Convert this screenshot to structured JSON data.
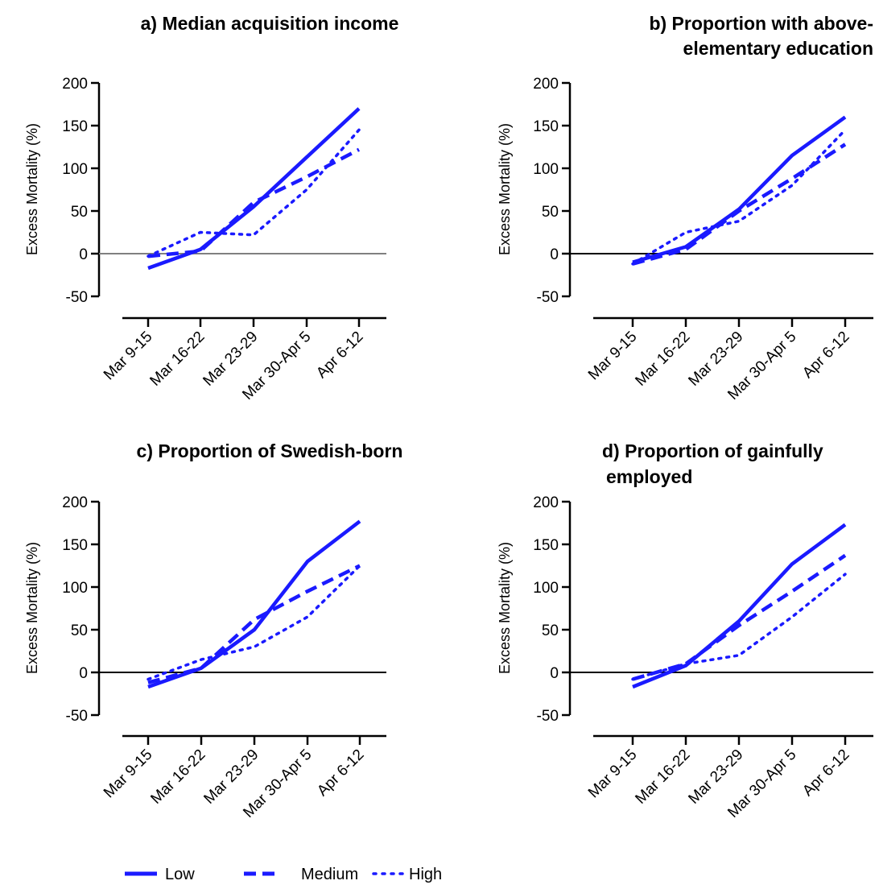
{
  "chart_data": [
    {
      "type": "line",
      "title": "a) Median acquisition income",
      "ylabel": "Excess Mortality (%)",
      "xlabel": "",
      "categories": [
        "Mar 9-15",
        "Mar 16-22",
        "Mar 23-29",
        "Mar 30-Apr 5",
        "Apr 6-12"
      ],
      "yticks": [
        -50,
        0,
        50,
        100,
        150,
        200
      ],
      "ylim": [
        -50,
        200
      ],
      "series": [
        {
          "name": "Low",
          "values": [
            -17,
            5,
            55,
            113,
            170
          ]
        },
        {
          "name": "Medium",
          "values": [
            -3,
            3,
            60,
            90,
            122
          ]
        },
        {
          "name": "High",
          "values": [
            -3,
            25,
            22,
            75,
            145
          ]
        }
      ]
    },
    {
      "type": "line",
      "title": "b) Proportion with above-elementary education",
      "ylabel": "Excess Mortality (%)",
      "xlabel": "",
      "categories": [
        "Mar 9-15",
        "Mar 16-22",
        "Mar 23-29",
        "Mar 30-Apr 5",
        "Apr 6-12"
      ],
      "yticks": [
        -50,
        0,
        50,
        100,
        150,
        200
      ],
      "ylim": [
        -50,
        200
      ],
      "series": [
        {
          "name": "Low",
          "values": [
            -10,
            8,
            52,
            115,
            160
          ]
        },
        {
          "name": "Medium",
          "values": [
            -12,
            5,
            50,
            88,
            128
          ]
        },
        {
          "name": "High",
          "values": [
            -12,
            25,
            38,
            80,
            145
          ]
        }
      ]
    },
    {
      "type": "line",
      "title": "c) Proportion of Swedish-born",
      "ylabel": "Excess Mortality (%)",
      "xlabel": "",
      "categories": [
        "Mar 9-15",
        "Mar 16-22",
        "Mar 23-29",
        "Mar 30-Apr 5",
        "Apr 6-12"
      ],
      "yticks": [
        -50,
        0,
        50,
        100,
        150,
        200
      ],
      "ylim": [
        -50,
        200
      ],
      "series": [
        {
          "name": "Low",
          "values": [
            -17,
            5,
            50,
            130,
            177
          ]
        },
        {
          "name": "Medium",
          "values": [
            -12,
            5,
            62,
            95,
            125
          ]
        },
        {
          "name": "High",
          "values": [
            -8,
            15,
            30,
            65,
            125
          ]
        }
      ]
    },
    {
      "type": "line",
      "title": "d) Proportion of gainfully employed",
      "ylabel": "Excess Mortality (%)",
      "xlabel": "",
      "categories": [
        "Mar 9-15",
        "Mar 16-22",
        "Mar 23-29",
        "Mar 30-Apr 5",
        "Apr 6-12"
      ],
      "yticks": [
        -50,
        0,
        50,
        100,
        150,
        200
      ],
      "ylim": [
        -50,
        200
      ],
      "series": [
        {
          "name": "Low",
          "values": [
            -17,
            8,
            60,
            127,
            173
          ]
        },
        {
          "name": "Medium",
          "values": [
            -8,
            10,
            55,
            95,
            137
          ]
        },
        {
          "name": "High",
          "values": [
            -8,
            10,
            20,
            65,
            115
          ]
        }
      ]
    }
  ],
  "legend": {
    "items": [
      {
        "label": "Low",
        "style": "solid"
      },
      {
        "label": "Medium",
        "style": "dashed"
      },
      {
        "label": "High",
        "style": "dotted"
      }
    ]
  },
  "colors": {
    "line": "#1a1aff",
    "axis": "#000000",
    "zero_line_a": "#808080",
    "zero_line": "#000000"
  }
}
